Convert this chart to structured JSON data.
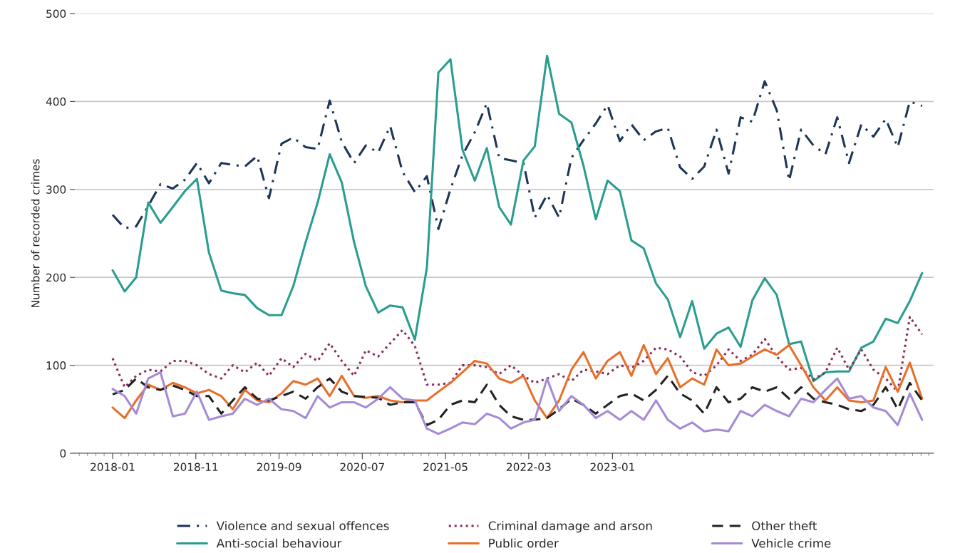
{
  "chart_data": {
    "type": "line",
    "ylabel": "Number of recorded crimes",
    "x": [
      "2018-01-01",
      "2018-02-14",
      "2018-03-28",
      "2018-05-11",
      "2018-06-25",
      "2018-08-09",
      "2018-09-22",
      "2018-11-05",
      "2018-12-19",
      "2019-02-02",
      "2019-03-16",
      "2019-04-29",
      "2019-06-13",
      "2019-07-26",
      "2019-09-10",
      "2019-10-23",
      "2019-12-07",
      "2020-01-20",
      "2020-03-04",
      "2020-04-17",
      "2020-06-01",
      "2020-07-14",
      "2020-08-28",
      "2020-10-11",
      "2020-11-25",
      "2021-01-09",
      "2021-02-22",
      "2021-04-05",
      "2021-05-19",
      "2021-07-02",
      "2021-08-16",
      "2021-09-29",
      "2021-11-13",
      "2021-12-26",
      "2022-02-10",
      "2022-03-23",
      "2022-05-07",
      "2022-06-20",
      "2022-08-04",
      "2022-09-17",
      "2022-11-01",
      "2022-12-14",
      "2023-01-28",
      "2023-03-11",
      "2023-04-25",
      "2023-06-09",
      "2023-07-22",
      "2023-09-05",
      "2023-10-19",
      "2023-12-02",
      "2024-01-16",
      "2024-02-29",
      "2024-04-13",
      "2024-05-26",
      "2024-07-10",
      "2024-08-23",
      "2024-10-07",
      "2024-11-20",
      "2025-01-04",
      "2025-02-17",
      "2025-04-01",
      "2025-05-14",
      "2025-06-28",
      "2025-08-11",
      "2025-09-25",
      "2025-11-08",
      "2025-12-22",
      "2026-02-05"
    ],
    "xlim": [
      "2017-08-16",
      "2026-03-19"
    ],
    "xticks": [
      "2018-01",
      "2018-11",
      "2019-09",
      "2020-07",
      "2021-05",
      "2022-03",
      "2023-01"
    ],
    "ylim": [
      0,
      500
    ],
    "yticks": [
      0,
      100,
      200,
      300,
      400,
      500
    ],
    "grid": "y",
    "legend": "bottom",
    "series": [
      {
        "name": "Violence and sexual offences",
        "color": "#1d3557",
        "line_style": "dashdot",
        "values": [
          271,
          256,
          258,
          281,
          306,
          301,
          311,
          330,
          307,
          330,
          328,
          326,
          338,
          290,
          352,
          359,
          348,
          346,
          401,
          354,
          330,
          350,
          342,
          372,
          320,
          297,
          315,
          255,
          300,
          339,
          365,
          398,
          336,
          333,
          330,
          268,
          294,
          268,
          336,
          356,
          375,
          396,
          355,
          374,
          356,
          366,
          370,
          325,
          312,
          326,
          368,
          318,
          382,
          377,
          423,
          390,
          310,
          368,
          350,
          340,
          382,
          330,
          374,
          360,
          380,
          348,
          400,
          395
        ]
      },
      {
        "name": "Anti-social behaviour",
        "color": "#2a9d8f",
        "line_style": "solid",
        "values": [
          208,
          184,
          200,
          285,
          262,
          280,
          298,
          312,
          228,
          185,
          182,
          180,
          165,
          157,
          157,
          190,
          240,
          285,
          340,
          308,
          240,
          190,
          160,
          168,
          166,
          129,
          211,
          433,
          448,
          345,
          310,
          347,
          280,
          260,
          333,
          349,
          452,
          386,
          376,
          327,
          266,
          310,
          298,
          242,
          233,
          193,
          175,
          132,
          173,
          119,
          136,
          143,
          121,
          174,
          199,
          180,
          124,
          127,
          82,
          92,
          93,
          93,
          120,
          127,
          153,
          148,
          173,
          205
        ]
      },
      {
        "name": "Criminal damage and arson",
        "color": "#8a2c5e",
        "line_style": "dotted",
        "values": [
          108,
          75,
          88,
          95,
          93,
          105,
          105,
          100,
          90,
          85,
          100,
          92,
          103,
          88,
          108,
          98,
          113,
          105,
          125,
          105,
          88,
          117,
          110,
          125,
          140,
          122,
          78,
          78,
          80,
          100,
          100,
          98,
          90,
          100,
          88,
          80,
          85,
          90,
          82,
          95,
          93,
          90,
          100,
          97,
          105,
          120,
          118,
          110,
          92,
          88,
          100,
          118,
          105,
          112,
          130,
          110,
          95,
          97,
          84,
          92,
          120,
          95,
          118,
          95,
          85,
          70,
          155,
          135
        ]
      },
      {
        "name": "Public order",
        "color": "#e76f2a",
        "line_style": "solid",
        "values": [
          52,
          40,
          60,
          78,
          72,
          80,
          75,
          68,
          72,
          65,
          50,
          72,
          60,
          58,
          68,
          82,
          78,
          85,
          65,
          88,
          65,
          63,
          65,
          60,
          58,
          60,
          60,
          70,
          80,
          92,
          105,
          102,
          85,
          80,
          88,
          60,
          40,
          60,
          95,
          115,
          85,
          105,
          115,
          88,
          123,
          90,
          108,
          75,
          85,
          78,
          118,
          100,
          102,
          110,
          118,
          112,
          123,
          100,
          75,
          60,
          75,
          60,
          58,
          60,
          98,
          70,
          103,
          62
        ]
      },
      {
        "name": "Other theft",
        "color": "#222222",
        "line_style": "dashed",
        "values": [
          67,
          72,
          85,
          75,
          72,
          77,
          72,
          65,
          65,
          45,
          60,
          75,
          62,
          60,
          65,
          70,
          62,
          75,
          85,
          70,
          65,
          64,
          63,
          55,
          58,
          58,
          32,
          38,
          55,
          60,
          58,
          78,
          55,
          42,
          38,
          38,
          40,
          50,
          62,
          55,
          45,
          55,
          65,
          68,
          60,
          72,
          88,
          68,
          60,
          45,
          75,
          58,
          62,
          75,
          70,
          75,
          62,
          75,
          62,
          58,
          55,
          50,
          48,
          55,
          75,
          50,
          80,
          60
        ]
      },
      {
        "name": "Vehicle crime",
        "color": "#a58bd6",
        "line_style": "solid",
        "values": [
          73,
          65,
          45,
          85,
          92,
          42,
          45,
          70,
          38,
          42,
          45,
          62,
          55,
          62,
          50,
          48,
          40,
          65,
          52,
          58,
          58,
          52,
          62,
          75,
          62,
          60,
          28,
          22,
          28,
          35,
          33,
          45,
          40,
          28,
          35,
          38,
          85,
          48,
          65,
          55,
          40,
          48,
          38,
          48,
          38,
          60,
          38,
          28,
          35,
          25,
          27,
          25,
          48,
          42,
          55,
          48,
          42,
          62,
          58,
          72,
          85,
          62,
          65,
          52,
          48,
          32,
          68,
          38
        ]
      }
    ]
  }
}
